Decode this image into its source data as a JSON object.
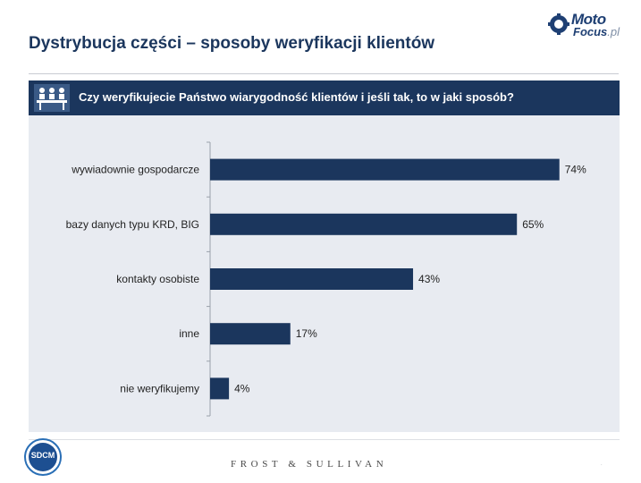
{
  "slide": {
    "title": "Dystrybucja części – sposoby weryfikacji klientów",
    "question": "Czy weryfikujecie Państwo wiarygodność klientów i jeśli tak, to w jaki sposób?"
  },
  "branding": {
    "logo_moto": "Moto",
    "logo_focus": "Focus",
    "logo_pl": ".pl",
    "sdcm_label": "SDCM",
    "footer_brand": "FROST & SULLIVAN",
    "page_mark": "."
  },
  "colors": {
    "navy": "#1b365d",
    "panel": "#e8ebf1",
    "bar": "#1b365d"
  },
  "icons": {
    "question": "meeting-people-icon",
    "logo": "gear-logo-icon"
  },
  "chart_data": {
    "type": "bar",
    "orientation": "horizontal",
    "categories": [
      "wywiadownie gospodarcze",
      "bazy danych typu KRD, BIG",
      "kontakty osobiste",
      "inne",
      "nie weryfikujemy"
    ],
    "values": [
      74,
      65,
      43,
      17,
      4
    ],
    "value_labels": [
      "74%",
      "65%",
      "43%",
      "17%",
      "4%"
    ],
    "unit": "%",
    "xlim": [
      0,
      80
    ],
    "grid": false,
    "legend": "none"
  }
}
